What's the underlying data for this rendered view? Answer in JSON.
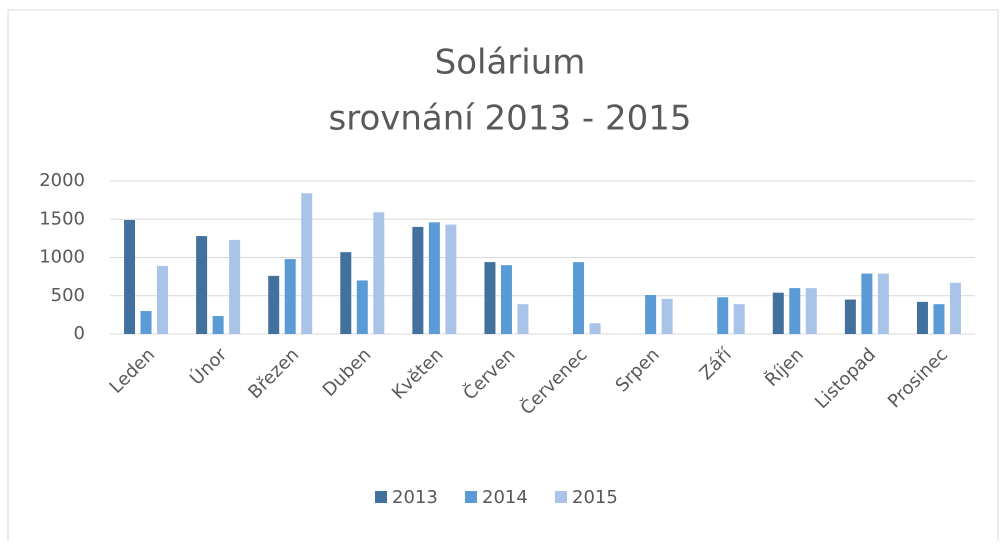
{
  "chart_data": {
    "type": "bar",
    "title": "Solárium",
    "subtitle": "srovnání 2013 - 2015",
    "categories": [
      "Leden",
      "Únor",
      "Březen",
      "Duben",
      "Květen",
      "Červen",
      "Červenec",
      "Srpen",
      "Září",
      "Říjen",
      "Listopad",
      "Prosinec"
    ],
    "series": [
      {
        "name": "2013",
        "color": "#41719c",
        "values": [
          1490,
          1280,
          760,
          1070,
          1400,
          940,
          null,
          null,
          null,
          540,
          450,
          420
        ]
      },
      {
        "name": "2014",
        "color": "#5b9bd5",
        "values": [
          300,
          235,
          980,
          700,
          1460,
          900,
          940,
          510,
          480,
          600,
          790,
          390
        ]
      },
      {
        "name": "2015",
        "color": "#a9c4e8",
        "values": [
          890,
          1230,
          1840,
          1590,
          1430,
          390,
          140,
          460,
          390,
          600,
          790,
          670
        ]
      }
    ],
    "ylim": [
      0,
      2000
    ],
    "yticks": [
      0,
      500,
      1000,
      1500,
      2000
    ],
    "grid": true,
    "legend": "bottom"
  }
}
